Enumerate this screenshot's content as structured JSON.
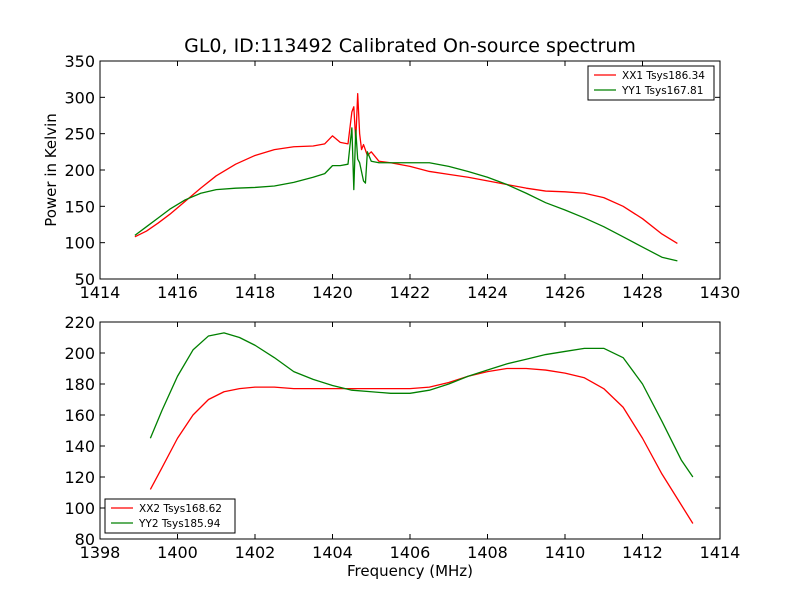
{
  "figure_title": "GL0, ID:113492 Calibrated On-source spectrum",
  "chart_data": [
    {
      "type": "line",
      "title": "GL0, ID:113492 Calibrated On-source spectrum",
      "xlabel": "",
      "ylabel": "Power in Kelvin",
      "xlim": [
        1414,
        1430
      ],
      "ylim": [
        50,
        350
      ],
      "xticks": [
        1414,
        1416,
        1418,
        1420,
        1422,
        1424,
        1426,
        1428,
        1430
      ],
      "yticks": [
        50,
        100,
        150,
        200,
        250,
        300,
        350
      ],
      "grid": false,
      "legend_position": "top-right",
      "series": [
        {
          "name": "XX1 Tsys186.34",
          "color": "#ff0000",
          "x": [
            1414.9,
            1415.2,
            1415.5,
            1415.8,
            1416.2,
            1416.6,
            1417.0,
            1417.5,
            1418.0,
            1418.5,
            1419.0,
            1419.5,
            1419.8,
            1420.0,
            1420.2,
            1420.4,
            1420.5,
            1420.55,
            1420.6,
            1420.65,
            1420.7,
            1420.75,
            1420.8,
            1420.9,
            1421.0,
            1421.2,
            1421.5,
            1422.0,
            1422.5,
            1423.0,
            1423.5,
            1424.0,
            1424.5,
            1425.0,
            1425.5,
            1426.0,
            1426.5,
            1427.0,
            1427.5,
            1428.0,
            1428.5,
            1428.9
          ],
          "y": [
            108,
            116,
            127,
            139,
            157,
            175,
            192,
            208,
            220,
            228,
            232,
            233,
            236,
            247,
            238,
            236,
            280,
            287,
            240,
            305,
            250,
            228,
            235,
            220,
            225,
            212,
            210,
            205,
            198,
            194,
            190,
            185,
            180,
            175,
            171,
            170,
            168,
            162,
            150,
            133,
            112,
            99
          ]
        },
        {
          "name": "YY1 Tsys167.81",
          "color": "#008000",
          "x": [
            1414.9,
            1415.2,
            1415.5,
            1415.8,
            1416.2,
            1416.6,
            1417.0,
            1417.5,
            1418.0,
            1418.5,
            1419.0,
            1419.5,
            1419.8,
            1420.0,
            1420.2,
            1420.4,
            1420.5,
            1420.55,
            1420.6,
            1420.65,
            1420.7,
            1420.8,
            1420.85,
            1420.9,
            1421.0,
            1421.2,
            1421.5,
            1422.0,
            1422.5,
            1423.0,
            1423.5,
            1424.0,
            1424.5,
            1425.0,
            1425.5,
            1426.0,
            1426.5,
            1427.0,
            1427.5,
            1428.0,
            1428.5,
            1428.9
          ],
          "y": [
            110,
            122,
            134,
            146,
            159,
            168,
            173,
            175,
            176,
            178,
            183,
            190,
            195,
            206,
            206,
            208,
            258,
            173,
            255,
            215,
            210,
            185,
            182,
            225,
            212,
            210,
            210,
            210,
            210,
            205,
            198,
            190,
            180,
            168,
            155,
            145,
            134,
            122,
            108,
            94,
            80,
            75
          ]
        }
      ]
    },
    {
      "type": "line",
      "title": "",
      "xlabel": "Frequency (MHz)",
      "ylabel": "",
      "xlim": [
        1398,
        1414
      ],
      "ylim": [
        80,
        220
      ],
      "xticks": [
        1398,
        1400,
        1402,
        1404,
        1406,
        1408,
        1410,
        1412,
        1414
      ],
      "yticks": [
        80,
        100,
        120,
        140,
        160,
        180,
        200,
        220
      ],
      "grid": false,
      "legend_position": "bottom-left",
      "series": [
        {
          "name": "XX2 Tsys168.62",
          "color": "#ff0000",
          "x": [
            1399.3,
            1399.6,
            1400.0,
            1400.4,
            1400.8,
            1401.2,
            1401.6,
            1402.0,
            1402.5,
            1403.0,
            1403.5,
            1404.0,
            1404.5,
            1405.0,
            1405.5,
            1406.0,
            1406.5,
            1407.0,
            1407.5,
            1408.0,
            1408.5,
            1409.0,
            1409.5,
            1410.0,
            1410.5,
            1411.0,
            1411.5,
            1412.0,
            1412.5,
            1413.0,
            1413.3
          ],
          "y": [
            112,
            126,
            145,
            160,
            170,
            175,
            177,
            178,
            178,
            177,
            177,
            177,
            177,
            177,
            177,
            177,
            178,
            181,
            185,
            188,
            190,
            190,
            189,
            187,
            184,
            177,
            165,
            145,
            122,
            102,
            90
          ]
        },
        {
          "name": "YY2 Tsys185.94",
          "color": "#008000",
          "x": [
            1399.3,
            1399.6,
            1400.0,
            1400.4,
            1400.8,
            1401.2,
            1401.6,
            1402.0,
            1402.5,
            1403.0,
            1403.5,
            1404.0,
            1404.5,
            1405.0,
            1405.5,
            1406.0,
            1406.5,
            1407.0,
            1407.5,
            1408.0,
            1408.5,
            1409.0,
            1409.5,
            1410.0,
            1410.5,
            1411.0,
            1411.5,
            1412.0,
            1412.5,
            1413.0,
            1413.3
          ],
          "y": [
            145,
            163,
            185,
            202,
            211,
            213,
            210,
            205,
            197,
            188,
            183,
            179,
            176,
            175,
            174,
            174,
            176,
            180,
            185,
            189,
            193,
            196,
            199,
            201,
            203,
            203,
            197,
            180,
            156,
            131,
            120
          ]
        }
      ]
    }
  ]
}
